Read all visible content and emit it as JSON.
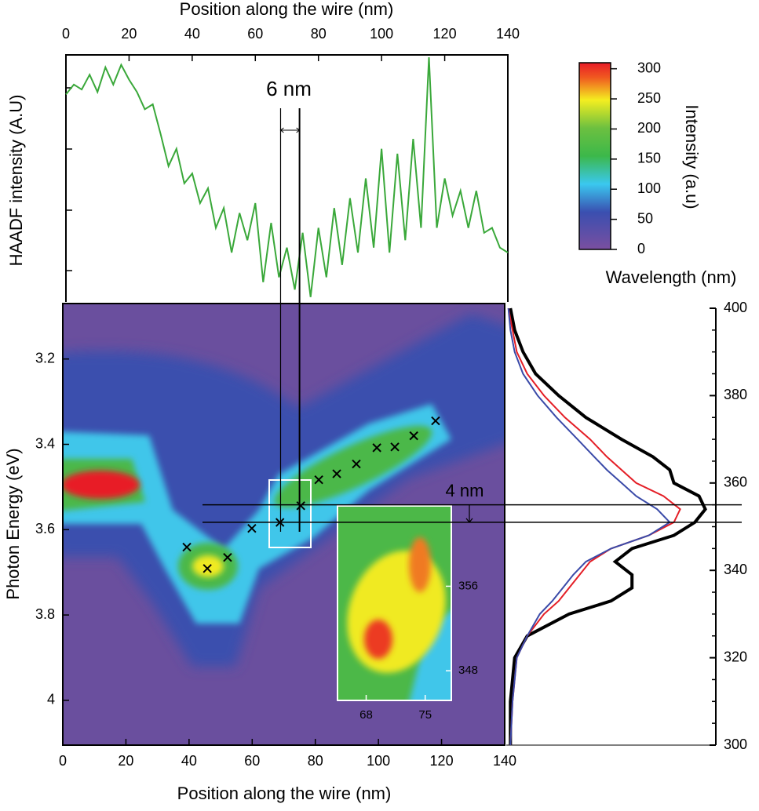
{
  "chart_data": [
    {
      "type": "line",
      "xlabel": "Position along the wire (nm)",
      "ylabel": "HAADF intensity (A.U)",
      "xlim": [
        0,
        140
      ],
      "xticks": [
        0,
        20,
        40,
        60,
        80,
        100,
        120,
        140
      ],
      "ylim": [
        0,
        1
      ],
      "color": "#3aa83a",
      "x": [
        0,
        2.5,
        5,
        7.5,
        10,
        12.5,
        15,
        17.5,
        20,
        22.5,
        25,
        27.5,
        30,
        32.5,
        35,
        37.5,
        40,
        42.5,
        45,
        47.5,
        50,
        52.5,
        55,
        57.5,
        60,
        62.5,
        65,
        67.5,
        70,
        72.5,
        75,
        77.5,
        80,
        82.5,
        85,
        87.5,
        90,
        92.5,
        95,
        97.5,
        100,
        102.5,
        105,
        107.5,
        110,
        112.5,
        115,
        117.5,
        120,
        122.5,
        125,
        127.5,
        130,
        132.5,
        135,
        137.5,
        140
      ],
      "values": [
        0.84,
        0.88,
        0.86,
        0.92,
        0.85,
        0.95,
        0.88,
        0.96,
        0.9,
        0.85,
        0.78,
        0.8,
        0.68,
        0.55,
        0.62,
        0.48,
        0.52,
        0.4,
        0.46,
        0.3,
        0.38,
        0.2,
        0.36,
        0.25,
        0.4,
        0.08,
        0.32,
        0.1,
        0.22,
        0.05,
        0.28,
        0.02,
        0.3,
        0.1,
        0.38,
        0.15,
        0.42,
        0.2,
        0.5,
        0.22,
        0.62,
        0.2,
        0.6,
        0.25,
        0.66,
        0.3,
        0.99,
        0.3,
        0.5,
        0.35,
        0.45,
        0.3,
        0.45,
        0.28,
        0.3,
        0.22,
        0.2
      ],
      "annotation": "6 nm",
      "markers": [
        69,
        75
      ]
    },
    {
      "type": "scatter",
      "xlabel": "Position along the wire (nm)",
      "ylabel": "Photon Energy (eV)",
      "xlim": [
        0,
        140
      ],
      "xticks": [
        0,
        20,
        40,
        60,
        80,
        100,
        120,
        140
      ],
      "ylim": [
        3.07,
        4.105
      ],
      "yticks": [
        3.2,
        3.4,
        3.6,
        3.8,
        4.0
      ],
      "x": [
        39.3,
        45.8,
        52.2,
        59.9,
        68.8,
        75.4,
        81.1,
        86.8,
        93.0,
        99.5,
        105.2,
        111.2,
        118.1
      ],
      "values": [
        3.641,
        3.691,
        3.665,
        3.597,
        3.583,
        3.544,
        3.483,
        3.469,
        3.446,
        3.408,
        3.406,
        3.38,
        3.345
      ],
      "colorbar": {
        "label": "Intensity (a.u)",
        "lim": [
          0,
          310
        ],
        "ticks": [
          0,
          50,
          100,
          150,
          200,
          250,
          300
        ]
      },
      "inset": {
        "xlim": [
          64.6,
          78.1
        ],
        "xticks": [
          68,
          75
        ],
        "ylim": [
          345.2,
          363.6
        ],
        "yticks": [
          356,
          348
        ]
      }
    },
    {
      "type": "line",
      "orientation": "vertical",
      "ylabel": "Wavelength (nm)",
      "ylim": [
        300,
        400
      ],
      "yticks": [
        300,
        320,
        340,
        360,
        380,
        400
      ],
      "xlim": [
        0,
        1
      ],
      "x": [
        300,
        310,
        320,
        325,
        330,
        333,
        336,
        339,
        342,
        345,
        348,
        351,
        354,
        357,
        360,
        363,
        366,
        370,
        375,
        380,
        385,
        390,
        395,
        400
      ],
      "series": [
        {
          "color": "#000000",
          "values": [
            0.02,
            0.02,
            0.04,
            0.1,
            0.3,
            0.5,
            0.6,
            0.6,
            0.52,
            0.6,
            0.8,
            0.9,
            0.95,
            0.92,
            0.8,
            0.78,
            0.7,
            0.55,
            0.38,
            0.25,
            0.14,
            0.08,
            0.04,
            0.02
          ]
        },
        {
          "color": "#e41e26",
          "values": [
            0.02,
            0.03,
            0.05,
            0.1,
            0.18,
            0.25,
            0.3,
            0.35,
            0.4,
            0.5,
            0.68,
            0.8,
            0.83,
            0.75,
            0.62,
            0.55,
            0.48,
            0.4,
            0.28,
            0.18,
            0.1,
            0.05,
            0.03,
            0.01
          ]
        },
        {
          "color": "#3a4aa8",
          "values": [
            0.02,
            0.03,
            0.05,
            0.1,
            0.16,
            0.22,
            0.27,
            0.32,
            0.38,
            0.5,
            0.68,
            0.78,
            0.72,
            0.62,
            0.55,
            0.48,
            0.42,
            0.34,
            0.24,
            0.15,
            0.08,
            0.04,
            0.02,
            0.01
          ]
        }
      ],
      "annotation": "4 nm",
      "markers": [
        355,
        351
      ]
    }
  ]
}
